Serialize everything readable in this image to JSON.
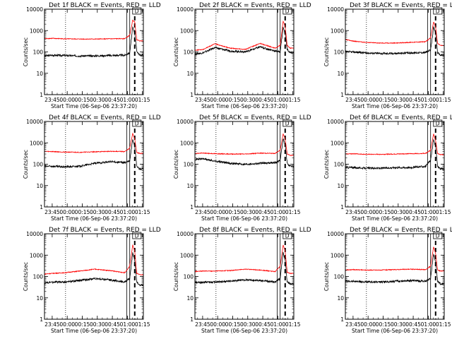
{
  "figure": {
    "y_axis_label": "Counts/sec",
    "x_axis_label": "Start Time (06-Sep-06 23:37:20)",
    "x_tick_labels": [
      "23:45",
      "00:00",
      "00:15",
      "00:30",
      "00:45",
      "01:00",
      "01:15"
    ],
    "y_tick_labels": [
      "1",
      "10",
      "100",
      "1000",
      "10000"
    ],
    "flag_label": "D",
    "colors": {
      "events": "#000000",
      "lld": "#ff0000"
    }
  },
  "chart_data": [
    {
      "type": "line",
      "title": "Det 1f BLACK = Events, RED = LLD",
      "xlabel": "Start Time (06-Sep-06 23:37:20)",
      "ylabel": "Counts/sec",
      "ylog": true,
      "ylim": [
        1,
        10000
      ],
      "x_minutes": [
        0,
        8,
        20,
        35,
        50,
        65,
        80,
        85,
        88,
        90,
        92,
        95,
        98
      ],
      "series": [
        {
          "name": "Events",
          "color": "#000000",
          "values": [
            65,
            70,
            68,
            65,
            65,
            68,
            70,
            90,
            1400,
            800,
            110,
            70,
            70
          ]
        },
        {
          "name": "LLD",
          "color": "#ff0000",
          "values": [
            420,
            430,
            410,
            400,
            400,
            410,
            420,
            600,
            3000,
            2500,
            380,
            330,
            330
          ]
        }
      ],
      "vlines_dotted_min": [
        21
      ],
      "vlines_solid_min": [
        82,
        85
      ],
      "vline_dashed_min": 90,
      "flag_min": 90
    },
    {
      "type": "line",
      "title": "Det 2f BLACK = Events, RED = LLD",
      "xlabel": "Start Time (06-Sep-06 23:37:20)",
      "ylabel": "Counts/sec",
      "ylog": true,
      "ylim": [
        1,
        10000
      ],
      "x_minutes": [
        0,
        8,
        20,
        35,
        50,
        65,
        80,
        85,
        88,
        90,
        92,
        95,
        98
      ],
      "series": [
        {
          "name": "Events",
          "color": "#000000",
          "values": [
            80,
            90,
            160,
            110,
            100,
            170,
            110,
            100,
            1400,
            700,
            130,
            90,
            90
          ]
        },
        {
          "name": "LLD",
          "color": "#ff0000",
          "values": [
            120,
            130,
            240,
            150,
            130,
            250,
            150,
            200,
            2800,
            1500,
            200,
            150,
            150
          ]
        }
      ],
      "vlines_dotted_min": [
        21
      ],
      "vlines_solid_min": [
        82,
        85
      ],
      "vline_dashed_min": 90,
      "flag_min": 90
    },
    {
      "type": "line",
      "title": "Det 3f BLACK = Events, RED = LLD",
      "xlabel": "Start Time (06-Sep-06 23:37:20)",
      "ylabel": "Counts/sec",
      "ylog": true,
      "ylim": [
        1,
        10000
      ],
      "x_minutes": [
        0,
        8,
        20,
        35,
        50,
        65,
        80,
        85,
        88,
        90,
        92,
        95,
        98
      ],
      "series": [
        {
          "name": "Events",
          "color": "#000000",
          "values": [
            100,
            100,
            90,
            85,
            85,
            90,
            95,
            120,
            1400,
            800,
            90,
            70,
            70
          ]
        },
        {
          "name": "LLD",
          "color": "#ff0000",
          "values": [
            380,
            320,
            280,
            260,
            260,
            280,
            300,
            450,
            2500,
            1500,
            250,
            200,
            200
          ]
        }
      ],
      "vlines_dotted_min": [
        21
      ],
      "vlines_solid_min": [
        82,
        85
      ],
      "vline_dashed_min": 90,
      "flag_min": 90
    },
    {
      "type": "line",
      "title": "Det 4f BLACK = Events, RED = LLD",
      "xlabel": "Start Time (06-Sep-06 23:37:20)",
      "ylabel": "Counts/sec",
      "ylog": true,
      "ylim": [
        1,
        10000
      ],
      "x_minutes": [
        0,
        8,
        20,
        35,
        50,
        65,
        80,
        85,
        88,
        90,
        92,
        95,
        98
      ],
      "series": [
        {
          "name": "Events",
          "color": "#000000",
          "values": [
            80,
            80,
            75,
            80,
            110,
            130,
            120,
            140,
            1500,
            700,
            80,
            60,
            60
          ]
        },
        {
          "name": "LLD",
          "color": "#ff0000",
          "values": [
            400,
            390,
            370,
            360,
            380,
            400,
            390,
            550,
            2800,
            1500,
            350,
            320,
            320
          ]
        }
      ],
      "vlines_dotted_min": [
        21
      ],
      "vlines_solid_min": [
        82,
        85
      ],
      "vline_dashed_min": 90,
      "flag_min": 90
    },
    {
      "type": "line",
      "title": "Det 5f BLACK = Events, RED = LLD",
      "xlabel": "Start Time (06-Sep-06 23:37:20)",
      "ylabel": "Counts/sec",
      "ylog": true,
      "ylim": [
        1,
        10000
      ],
      "x_minutes": [
        0,
        8,
        20,
        35,
        50,
        65,
        80,
        85,
        88,
        90,
        92,
        95,
        98
      ],
      "series": [
        {
          "name": "Events",
          "color": "#000000",
          "values": [
            170,
            180,
            140,
            110,
            100,
            110,
            120,
            150,
            1500,
            800,
            110,
            80,
            80
          ]
        },
        {
          "name": "LLD",
          "color": "#ff0000",
          "values": [
            320,
            330,
            310,
            300,
            300,
            330,
            320,
            450,
            2700,
            1500,
            300,
            260,
            260
          ]
        }
      ],
      "vlines_dotted_min": [
        21
      ],
      "vlines_solid_min": [
        82,
        85
      ],
      "vline_dashed_min": 90,
      "flag_min": 90
    },
    {
      "type": "line",
      "title": "Det 6f BLACK = Events, RED = LLD",
      "xlabel": "Start Time (06-Sep-06 23:37:20)",
      "ylabel": "Counts/sec",
      "ylog": true,
      "ylim": [
        1,
        10000
      ],
      "x_minutes": [
        0,
        8,
        20,
        35,
        50,
        65,
        80,
        85,
        88,
        90,
        92,
        95,
        98
      ],
      "series": [
        {
          "name": "Events",
          "color": "#000000",
          "values": [
            70,
            70,
            65,
            65,
            70,
            70,
            80,
            150,
            1400,
            700,
            80,
            60,
            60
          ]
        },
        {
          "name": "LLD",
          "color": "#ff0000",
          "values": [
            300,
            310,
            290,
            290,
            300,
            310,
            320,
            450,
            2600,
            1300,
            320,
            280,
            280
          ]
        }
      ],
      "vlines_dotted_min": [
        21
      ],
      "vlines_solid_min": [
        82,
        85
      ],
      "vline_dashed_min": 90,
      "flag_min": 90
    },
    {
      "type": "line",
      "title": "Det 7f BLACK = Events, RED = LLD",
      "xlabel": "Start Time (06-Sep-06 23:37:20)",
      "ylabel": "Counts/sec",
      "ylog": true,
      "ylim": [
        1,
        10000
      ],
      "x_minutes": [
        0,
        8,
        20,
        35,
        50,
        65,
        80,
        85,
        88,
        90,
        92,
        95,
        98
      ],
      "series": [
        {
          "name": "Events",
          "color": "#000000",
          "values": [
            50,
            55,
            55,
            65,
            80,
            70,
            55,
            80,
            1300,
            600,
            55,
            40,
            40
          ]
        },
        {
          "name": "LLD",
          "color": "#ff0000",
          "values": [
            130,
            140,
            150,
            180,
            220,
            190,
            150,
            300,
            3000,
            1500,
            140,
            120,
            120
          ]
        }
      ],
      "vlines_dotted_min": [
        21
      ],
      "vlines_solid_min": [
        82,
        85
      ],
      "vline_dashed_min": 90,
      "flag_min": 90
    },
    {
      "type": "line",
      "title": "Det 8f BLACK = Events, RED = LLD",
      "xlabel": "Start Time (06-Sep-06 23:37:20)",
      "ylabel": "Counts/sec",
      "ylog": true,
      "ylim": [
        1,
        10000
      ],
      "x_minutes": [
        0,
        8,
        20,
        35,
        50,
        65,
        80,
        85,
        88,
        90,
        92,
        95,
        98
      ],
      "series": [
        {
          "name": "Events",
          "color": "#000000",
          "values": [
            50,
            55,
            55,
            60,
            70,
            65,
            55,
            80,
            1300,
            600,
            55,
            45,
            45
          ]
        },
        {
          "name": "LLD",
          "color": "#ff0000",
          "values": [
            170,
            180,
            180,
            190,
            220,
            200,
            170,
            300,
            3000,
            1500,
            160,
            140,
            140
          ]
        }
      ],
      "vlines_dotted_min": [
        21
      ],
      "vlines_solid_min": [
        82,
        85
      ],
      "vline_dashed_min": 90,
      "flag_min": 90
    },
    {
      "type": "line",
      "title": "Det 9f BLACK = Events, RED = LLD",
      "xlabel": "Start Time (06-Sep-06 23:37:20)",
      "ylabel": "Counts/sec",
      "ylog": true,
      "ylim": [
        1,
        10000
      ],
      "x_minutes": [
        0,
        8,
        20,
        35,
        50,
        65,
        80,
        85,
        88,
        90,
        92,
        95,
        98
      ],
      "series": [
        {
          "name": "Events",
          "color": "#000000",
          "values": [
            60,
            60,
            55,
            55,
            60,
            65,
            60,
            80,
            1200,
            500,
            60,
            45,
            45
          ]
        },
        {
          "name": "LLD",
          "color": "#ff0000",
          "values": [
            200,
            210,
            200,
            200,
            210,
            220,
            210,
            300,
            2500,
            1200,
            200,
            180,
            180
          ]
        }
      ],
      "vlines_dotted_min": [
        21
      ],
      "vlines_solid_min": [
        82,
        85
      ],
      "vline_dashed_min": 90,
      "flag_min": 90
    }
  ]
}
